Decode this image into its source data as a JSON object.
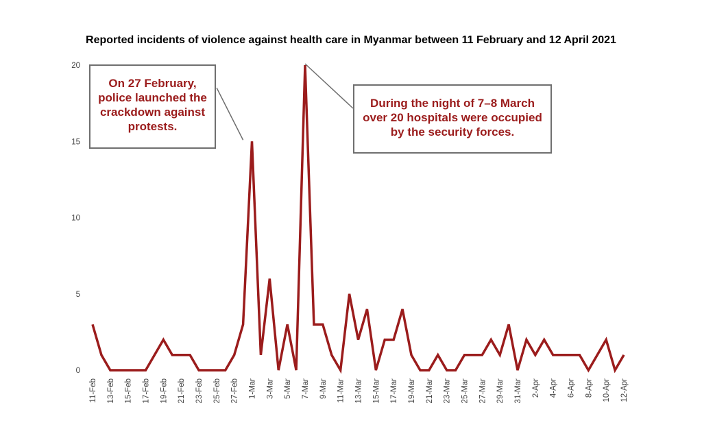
{
  "chart_data": {
    "type": "line",
    "title": "Reported incidents of violence against health care in Myanmar between 11 February and 12 April 2021",
    "xlabel": "",
    "ylabel": "",
    "ylim": [
      0,
      20
    ],
    "yticks": [
      "0",
      "5",
      "10",
      "15",
      "20"
    ],
    "grid": false,
    "legend": "none",
    "line_color": "#9b1c1c",
    "x": [
      "11-Feb",
      "12-Feb",
      "13-Feb",
      "14-Feb",
      "15-Feb",
      "16-Feb",
      "17-Feb",
      "18-Feb",
      "19-Feb",
      "20-Feb",
      "21-Feb",
      "22-Feb",
      "23-Feb",
      "24-Feb",
      "25-Feb",
      "26-Feb",
      "27-Feb",
      "28-Feb",
      "1-Mar",
      "2-Mar",
      "3-Mar",
      "4-Mar",
      "5-Mar",
      "6-Mar",
      "7-Mar",
      "8-Mar",
      "9-Mar",
      "10-Mar",
      "11-Mar",
      "12-Mar",
      "13-Mar",
      "14-Mar",
      "15-Mar",
      "16-Mar",
      "17-Mar",
      "18-Mar",
      "19-Mar",
      "20-Mar",
      "21-Mar",
      "22-Mar",
      "23-Mar",
      "24-Mar",
      "25-Mar",
      "26-Mar",
      "27-Mar",
      "28-Mar",
      "29-Mar",
      "30-Mar",
      "31-Mar",
      "1-Apr",
      "2-Apr",
      "3-Apr",
      "4-Apr",
      "5-Apr",
      "6-Apr",
      "7-Apr",
      "8-Apr",
      "9-Apr",
      "10-Apr",
      "11-Apr",
      "12-Apr"
    ],
    "xtick_labels": [
      "11-Feb",
      "13-Feb",
      "15-Feb",
      "17-Feb",
      "19-Feb",
      "21-Feb",
      "23-Feb",
      "25-Feb",
      "27-Feb",
      "1-Mar",
      "3-Mar",
      "5-Mar",
      "7-Mar",
      "9-Mar",
      "11-Mar",
      "13-Mar",
      "15-Mar",
      "17-Mar",
      "19-Mar",
      "21-Mar",
      "23-Mar",
      "25-Mar",
      "27-Mar",
      "29-Mar",
      "31-Mar",
      "2-Apr",
      "4-Apr",
      "6-Apr",
      "8-Apr",
      "10-Apr",
      "12-Apr"
    ],
    "values": [
      3,
      1,
      0,
      0,
      0,
      0,
      0,
      1,
      2,
      1,
      1,
      1,
      0,
      0,
      0,
      0,
      1,
      3,
      15,
      1,
      6,
      0,
      3,
      0,
      20,
      3,
      3,
      1,
      0,
      5,
      2,
      4,
      0,
      2,
      2,
      4,
      1,
      0,
      0,
      1,
      0,
      0,
      1,
      1,
      1,
      2,
      1,
      3,
      0,
      2,
      1,
      2,
      1,
      1,
      1,
      1,
      0,
      1,
      2,
      0,
      1
    ],
    "annotations": [
      {
        "text": "On 27 February, police launched the crackdown against protests.",
        "lines": [
          "On 27 February,",
          "police launched the",
          "crackdown against",
          "protests."
        ],
        "target_x": "28-Feb",
        "target_y": 15
      },
      {
        "text": "During the night of 7–8 March over 20 hospitals were occupied by the security forces.",
        "lines": [
          "During the night of 7–8 March",
          "over 20 hospitals were occupied",
          "by the security forces."
        ],
        "target_x": "7-Mar",
        "target_y": 20
      }
    ]
  }
}
